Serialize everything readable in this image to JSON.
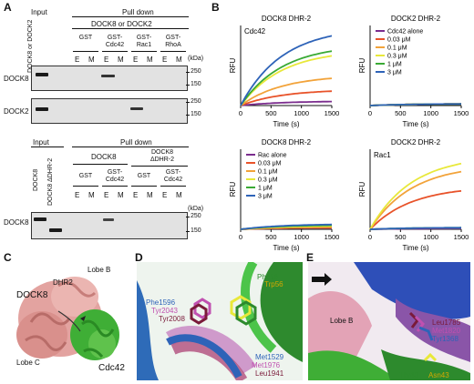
{
  "panels": {
    "A": "A",
    "B": "B",
    "C": "C",
    "D": "D",
    "E": "E"
  },
  "a_top": {
    "input": "Input",
    "pulldown": "Pull down",
    "header": "DOCK8 or DOCK2",
    "side_label": "DOCK8 or DOCK2",
    "groups": [
      {
        "label": "GST"
      },
      {
        "label": "GST-\nCdc42"
      },
      {
        "label": "GST-\nRac1"
      },
      {
        "label": "GST-\nRhoA"
      }
    ],
    "lanes": [
      "E",
      "M",
      "E",
      "M",
      "E",
      "M",
      "E",
      "M"
    ],
    "kda": "(kDa)",
    "rows": [
      {
        "label": "DOCK8",
        "marks": [
          "250",
          "150"
        ]
      },
      {
        "label": "DOCK2",
        "marks": [
          "250",
          "150"
        ]
      }
    ]
  },
  "a_bot": {
    "input": "Input",
    "pulldown": "Pull down",
    "lane_labels": [
      "DOCK8",
      "DOCK8 ΔDHR-2"
    ],
    "head1": "DOCK8",
    "head2": "DOCK8\nΔDHR-2",
    "groups": [
      {
        "label": "GST"
      },
      {
        "label": "GST-\nCdc42"
      },
      {
        "label": "GST"
      },
      {
        "label": "GST-\nCdc42"
      }
    ],
    "lanes": [
      "E",
      "M",
      "E",
      "M",
      "E",
      "M",
      "E",
      "M"
    ],
    "kda": "(kDa)",
    "row": "DOCK8",
    "marks": [
      "250",
      "150"
    ]
  },
  "chart_data": [
    {
      "type": "line",
      "title": "DOCK8 DHR-2",
      "annotation": "Cdc42",
      "xlabel": "Time (s)",
      "ylabel": "RFU",
      "xlim": [
        0,
        1500
      ],
      "xticks": [
        "0",
        "500",
        "1000",
        "1500"
      ],
      "series": [
        {
          "color": "#7b2d8e",
          "values": [
            [
              0,
              0
            ],
            [
              1500,
              0.05
            ]
          ]
        },
        {
          "color": "#e8532a",
          "values": [
            [
              0,
              0
            ],
            [
              1500,
              0.18
            ]
          ]
        },
        {
          "color": "#f2a33a",
          "values": [
            [
              0,
              0
            ],
            [
              1500,
              0.34
            ]
          ]
        },
        {
          "color": "#e8e83a",
          "values": [
            [
              0,
              0
            ],
            [
              1500,
              0.62
            ]
          ]
        },
        {
          "color": "#3aaa35",
          "values": [
            [
              0,
              0
            ],
            [
              1500,
              0.68
            ]
          ]
        },
        {
          "color": "#2e63b8",
          "values": [
            [
              0,
              0
            ],
            [
              1500,
              0.87
            ]
          ]
        }
      ]
    },
    {
      "type": "line",
      "title": "DOCK2 DHR-2",
      "xlabel": "Time (s)",
      "ylabel": "RFU",
      "xlim": [
        0,
        1500
      ],
      "xticks": [
        "0",
        "500",
        "1000",
        "1500"
      ],
      "legend": [
        "Cdc42 alone",
        "0.03 μM",
        "0.1 μM",
        "0.3 μM",
        "1 μM",
        "3 μM"
      ],
      "series": [
        {
          "name": "Cdc42 alone",
          "color": "#7b2d8e",
          "values": [
            [
              0,
              0
            ],
            [
              1500,
              0.02
            ]
          ]
        },
        {
          "name": "0.03 μM",
          "color": "#e8532a",
          "values": [
            [
              0,
              0
            ],
            [
              1500,
              0.02
            ]
          ]
        },
        {
          "name": "0.1 μM",
          "color": "#f2a33a",
          "values": [
            [
              0,
              0
            ],
            [
              1500,
              0.02
            ]
          ]
        },
        {
          "name": "0.3 μM",
          "color": "#e8e83a",
          "values": [
            [
              0,
              0
            ],
            [
              1500,
              0.02
            ]
          ]
        },
        {
          "name": "1 μM",
          "color": "#3aaa35",
          "values": [
            [
              0,
              0
            ],
            [
              1500,
              0.02
            ]
          ]
        },
        {
          "name": "3 μM",
          "color": "#2e63b8",
          "values": [
            [
              0,
              0
            ],
            [
              1500,
              0.02
            ]
          ]
        }
      ]
    },
    {
      "type": "line",
      "title": "DOCK8 DHR-2",
      "xlabel": "Time (s)",
      "ylabel": "RFU",
      "xlim": [
        0,
        1500
      ],
      "xticks": [
        "0",
        "500",
        "1000",
        "1500"
      ],
      "legend": [
        "Rac alone",
        "0.03 μM",
        "0.1 μM",
        "0.3 μM",
        "1 μM",
        "3 μM"
      ],
      "series": [
        {
          "name": "Rac alone",
          "color": "#7b2d8e",
          "values": [
            [
              0,
              0
            ],
            [
              1500,
              0.02
            ]
          ]
        },
        {
          "name": "0.03 μM",
          "color": "#e8532a",
          "values": [
            [
              0,
              0
            ],
            [
              1500,
              0.02
            ]
          ]
        },
        {
          "name": "0.1 μM",
          "color": "#f2a33a",
          "values": [
            [
              0,
              0
            ],
            [
              1500,
              0.03
            ]
          ]
        },
        {
          "name": "0.3 μM",
          "color": "#e8e83a",
          "values": [
            [
              0,
              0
            ],
            [
              1500,
              0.04
            ]
          ]
        },
        {
          "name": "1 μM",
          "color": "#3aaa35",
          "values": [
            [
              0,
              0
            ],
            [
              1500,
              0.05
            ]
          ]
        },
        {
          "name": "3 μM",
          "color": "#2e63b8",
          "values": [
            [
              0,
              0
            ],
            [
              1500,
              0.06
            ]
          ]
        }
      ]
    },
    {
      "type": "line",
      "title": "DOCK2 DHR-2",
      "annotation": "Rac1",
      "xlabel": "Time (s)",
      "ylabel": "RFU",
      "xlim": [
        0,
        1500
      ],
      "xticks": [
        "0",
        "500",
        "1000",
        "1500"
      ],
      "series": [
        {
          "color": "#7b2d8e",
          "values": [
            [
              0,
              0
            ],
            [
              1500,
              0.01
            ]
          ]
        },
        {
          "color": "#e8532a",
          "values": [
            [
              0,
              0
            ],
            [
              1500,
              0.48
            ]
          ]
        },
        {
          "color": "#f2a33a",
          "values": [
            [
              0,
              0
            ],
            [
              1500,
              0.72
            ]
          ]
        },
        {
          "color": "#e8e83a",
          "values": [
            [
              0,
              0
            ],
            [
              1500,
              0.82
            ]
          ]
        },
        {
          "color": "#3aaa35",
          "values": [
            [
              0,
              0
            ],
            [
              1500,
              0.02
            ]
          ]
        },
        {
          "color": "#2e63b8",
          "values": [
            [
              0,
              0
            ],
            [
              1500,
              0.02
            ]
          ]
        }
      ]
    }
  ],
  "structC": {
    "dock8": "DOCK8",
    "dhr2": "DHR2",
    "lobeB": "Lobe B",
    "lobeC": "Lobe C",
    "cdc42": "Cdc42"
  },
  "structD": [
    {
      "text": "Phe56",
      "color": "#2d8a2d"
    },
    {
      "text": "Trp56",
      "color": "#d4a800"
    },
    {
      "text": "Phe1596",
      "color": "#2e63b8"
    },
    {
      "text": "Tyr2043",
      "color": "#c050b0"
    },
    {
      "text": "Tyr2008",
      "color": "#7a1a3a"
    },
    {
      "text": "Met1529",
      "color": "#2e63b8"
    },
    {
      "text": "Met1976",
      "color": "#c050b0"
    },
    {
      "text": "Leu1941",
      "color": "#7a1a3a"
    }
  ],
  "structE": [
    {
      "text": "Lobe B",
      "color": "#111111"
    },
    {
      "text": "Leu1785",
      "color": "#7a1a3a"
    },
    {
      "text": "Met1820",
      "color": "#c050b0"
    },
    {
      "text": "Tyr1368",
      "color": "#2e63b8"
    },
    {
      "text": "Thr43",
      "color": "#2d8a2d"
    },
    {
      "text": "Asn43",
      "color": "#d4a800"
    }
  ]
}
